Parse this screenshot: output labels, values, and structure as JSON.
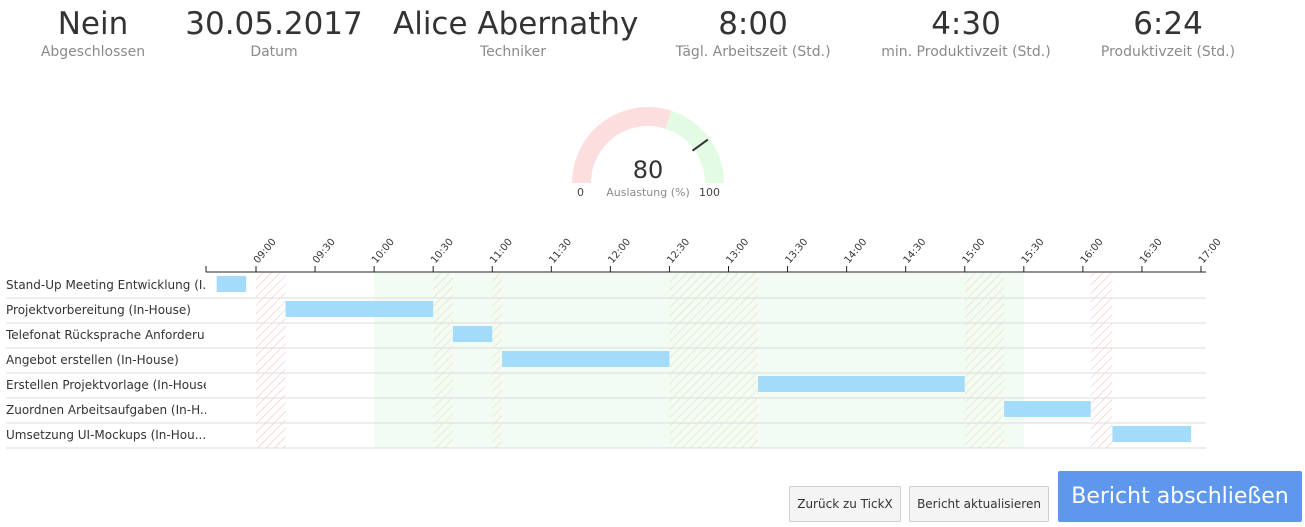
{
  "kpis": [
    {
      "value": "Nein",
      "label": "Abgeschlossen"
    },
    {
      "value": "30.05.2017",
      "label": "Datum"
    },
    {
      "value": "Alice Abernathy",
      "label": "Techniker"
    },
    {
      "value": "8:00",
      "label": "Tägl. Arbeitszeit (Std.)"
    },
    {
      "value": "4:30",
      "label": "min. Produktivzeit (Std.)"
    },
    {
      "value": "6:24",
      "label": "Produktivzeit (Std.)"
    }
  ],
  "gauge": {
    "value": "80",
    "min": "0",
    "max": "100",
    "caption": "Auslastung (%)",
    "percent": 80,
    "threshold_percent": 60,
    "colors": {
      "low": "#fddede",
      "high": "#e3fbe3",
      "needle": "#333333"
    }
  },
  "gantt": {
    "time_ticks": [
      "09:00",
      "09:30",
      "10:00",
      "10:30",
      "11:00",
      "11:30",
      "12:00",
      "12:30",
      "13:00",
      "13:30",
      "14:00",
      "14:30",
      "15:00",
      "15:30",
      "16:00",
      "16:30",
      "17:00"
    ],
    "rows": [
      {
        "label": "Stand-Up Meeting Entwicklung (I...",
        "start": "08:40",
        "end": "08:55"
      },
      {
        "label": "Projektvorbereitung (In-House)",
        "start": "09:15",
        "end": "10:30"
      },
      {
        "label": "Telefonat Rücksprache Anforderu...",
        "start": "10:40",
        "end": "11:00"
      },
      {
        "label": "Angebot erstellen (In-House)",
        "start": "11:05",
        "end": "12:30"
      },
      {
        "label": "Erstellen Projektvorlage (In-House)",
        "start": "13:15",
        "end": "15:00"
      },
      {
        "label": "Zuordnen Arbeitsaufgaben (In-H...",
        "start": "15:20",
        "end": "16:04"
      },
      {
        "label": "Umsetzung UI-Mockups (In-Hou...",
        "start": "16:15",
        "end": "16:55"
      }
    ],
    "workday": {
      "start": "10:00",
      "end": "15:30"
    },
    "gaps": [
      {
        "start": "09:00",
        "end": "09:15"
      },
      {
        "start": "10:30",
        "end": "10:40"
      },
      {
        "start": "11:00",
        "end": "11:05"
      },
      {
        "start": "12:30",
        "end": "13:15"
      },
      {
        "start": "15:00",
        "end": "15:20"
      },
      {
        "start": "16:04",
        "end": "16:15"
      }
    ],
    "colors": {
      "bar": "#a3dcfa",
      "workday": "#f3fcf3",
      "gap_red": "#f0b9b9",
      "gap_orange": "#e9d2bf",
      "axis": "#222222",
      "row_line": "#dddddd"
    }
  },
  "buttons": {
    "back": "Zurück zu TickX",
    "update": "Bericht aktualisieren",
    "finish": "Bericht abschließen"
  }
}
